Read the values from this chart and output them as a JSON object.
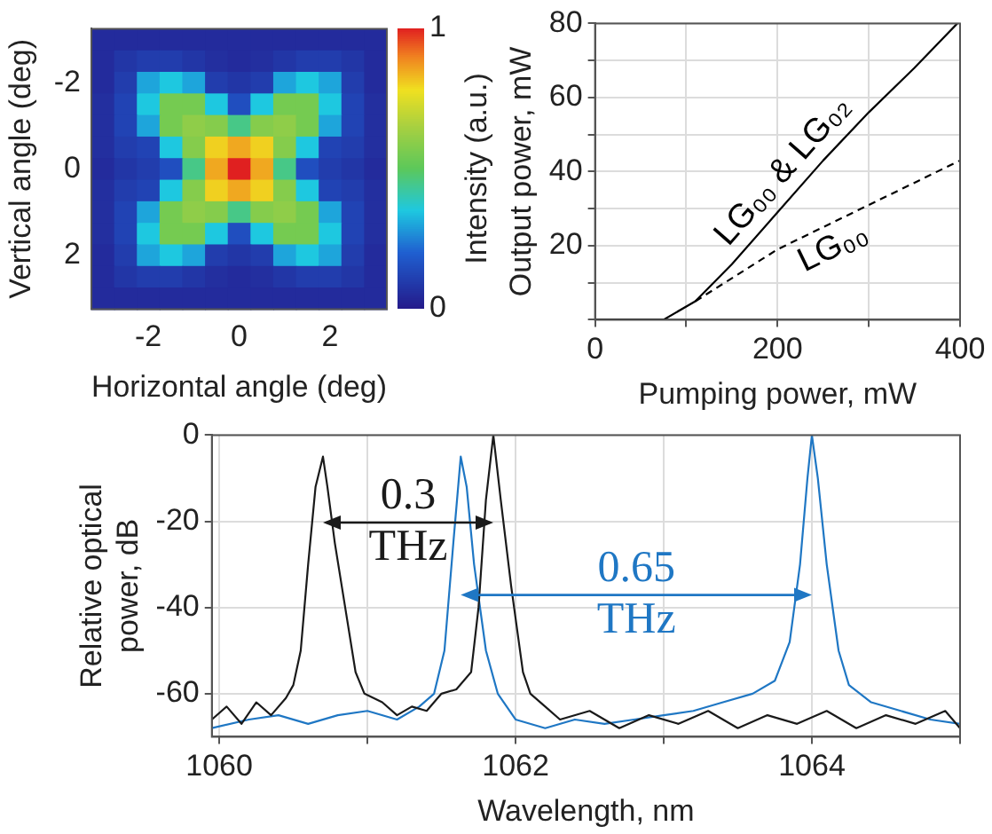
{
  "chart_data": [
    {
      "type": "heatmap",
      "xlabel": "Horizontal angle (deg)",
      "ylabel": "Vertical angle (deg)",
      "clabel": "Intensity (a.u.)",
      "categories": [
        null,
        null,
        "-2",
        null,
        null,
        null,
        "0",
        null,
        null,
        null,
        "2",
        null,
        null
      ],
      "y_categories": [
        null,
        null,
        "-2",
        null,
        null,
        null,
        "0",
        null,
        null,
        null,
        "2",
        null,
        null
      ],
      "clim": [
        0,
        1
      ],
      "cticks": [
        0,
        1
      ],
      "cells": [
        [
          0.05,
          0.05,
          0.05,
          0.05,
          0.05,
          0.05,
          0.05,
          0.05,
          0.05,
          0.05,
          0.05,
          0.05,
          0.05
        ],
        [
          0.05,
          0.08,
          0.1,
          0.1,
          0.08,
          0.06,
          0.05,
          0.06,
          0.08,
          0.1,
          0.1,
          0.08,
          0.05
        ],
        [
          0.05,
          0.1,
          0.3,
          0.35,
          0.3,
          0.1,
          0.08,
          0.1,
          0.3,
          0.35,
          0.3,
          0.1,
          0.05
        ],
        [
          0.06,
          0.12,
          0.35,
          0.55,
          0.55,
          0.35,
          0.15,
          0.35,
          0.55,
          0.55,
          0.35,
          0.12,
          0.06
        ],
        [
          0.06,
          0.12,
          0.3,
          0.55,
          0.6,
          0.58,
          0.45,
          0.58,
          0.6,
          0.55,
          0.3,
          0.12,
          0.06
        ],
        [
          0.06,
          0.1,
          0.12,
          0.35,
          0.58,
          0.8,
          0.85,
          0.8,
          0.58,
          0.35,
          0.12,
          0.1,
          0.06
        ],
        [
          0.05,
          0.08,
          0.1,
          0.15,
          0.45,
          0.85,
          1,
          0.85,
          0.45,
          0.15,
          0.1,
          0.08,
          0.05
        ],
        [
          0.06,
          0.1,
          0.12,
          0.35,
          0.58,
          0.8,
          0.85,
          0.8,
          0.58,
          0.35,
          0.12,
          0.1,
          0.06
        ],
        [
          0.06,
          0.12,
          0.3,
          0.55,
          0.6,
          0.58,
          0.45,
          0.58,
          0.6,
          0.55,
          0.3,
          0.12,
          0.06
        ],
        [
          0.06,
          0.12,
          0.35,
          0.55,
          0.55,
          0.35,
          0.15,
          0.35,
          0.55,
          0.55,
          0.35,
          0.12,
          0.06
        ],
        [
          0.05,
          0.1,
          0.3,
          0.35,
          0.3,
          0.1,
          0.08,
          0.1,
          0.3,
          0.35,
          0.3,
          0.1,
          0.05
        ],
        [
          0.05,
          0.08,
          0.1,
          0.1,
          0.08,
          0.06,
          0.05,
          0.06,
          0.08,
          0.1,
          0.1,
          0.08,
          0.05
        ],
        [
          0.05,
          0.05,
          0.05,
          0.05,
          0.05,
          0.05,
          0.05,
          0.05,
          0.05,
          0.05,
          0.05,
          0.05,
          0.05
        ]
      ]
    },
    {
      "type": "line",
      "xlabel": "Pumping power, mW",
      "ylabel": "Output power, mW",
      "xlim": [
        0,
        400
      ],
      "ylim": [
        0,
        80
      ],
      "xticks": [
        0,
        {
          "value": 100,
          "label": null
        },
        200,
        {
          "value": 300,
          "label": null
        },
        400
      ],
      "yticks": [
        {
          "value": 0,
          "label": null
        },
        {
          "value": 10,
          "label": null
        },
        20,
        {
          "value": 30,
          "label": null
        },
        40,
        {
          "value": 50,
          "label": null
        },
        60,
        {
          "value": 70,
          "label": null
        },
        80
      ],
      "grid": true,
      "marker": "none",
      "series": [
        {
          "name": "LG₀₀ & LG₀₂",
          "color": "#000000",
          "line_style": "solid",
          "x": [
            0,
            75,
            110,
            150,
            200,
            250,
            300,
            350,
            397
          ],
          "values": [
            0,
            0,
            5,
            15,
            29,
            43,
            56,
            68,
            80
          ]
        },
        {
          "name": "LG₀₀",
          "color": "#000000",
          "line_style": "dashed",
          "x": [
            110,
            200,
            300,
            400
          ],
          "values": [
            5,
            19,
            31,
            43
          ]
        }
      ]
    },
    {
      "type": "line",
      "xlabel": "Wavelength, nm",
      "ylabel": "Relative optical power, dB",
      "xlim": [
        1059.95,
        1065
      ],
      "ylim": [
        -70,
        0
      ],
      "xticks": [
        1060,
        {
          "value": 1061,
          "label": null
        },
        1062,
        {
          "value": 1063,
          "label": null
        },
        1064,
        {
          "value": 1065,
          "label": null
        }
      ],
      "yticks": [
        -60,
        -40,
        -20,
        0
      ],
      "grid": true,
      "marker": "none",
      "annotations": [
        "0.3 THz",
        "0.65 THz"
      ],
      "series": [
        {
          "color": "#1a1a1a",
          "x": [
            1059.95,
            1060.05,
            1060.15,
            1060.25,
            1060.35,
            1060.45,
            1060.5,
            1060.55,
            1060.6,
            1060.65,
            1060.7,
            1060.73,
            1060.78,
            1060.85,
            1060.92,
            1060.98,
            1061.1,
            1061.2,
            1061.3,
            1061.4,
            1061.5,
            1061.6,
            1061.7,
            1061.75,
            1061.8,
            1061.85,
            1061.9,
            1061.97,
            1062.05,
            1062.1,
            1062.2,
            1062.3,
            1062.5,
            1062.7,
            1062.9,
            1063.1,
            1063.3,
            1063.5,
            1063.7,
            1063.9,
            1064.1,
            1064.3,
            1064.5,
            1064.7,
            1064.9,
            1065
          ],
          "values": [
            -66,
            -63,
            -67,
            -62,
            -65,
            -61,
            -58,
            -50,
            -30,
            -12,
            -5,
            -12,
            -25,
            -40,
            -55,
            -60,
            -62,
            -65,
            -63,
            -64,
            -60,
            -59,
            -55,
            -40,
            -15,
            0,
            -15,
            -35,
            -55,
            -60,
            -63,
            -66,
            -64,
            -68,
            -65,
            -67,
            -64,
            -68,
            -65,
            -67,
            -64,
            -68,
            -65,
            -67,
            -64,
            -68
          ]
        },
        {
          "color": "#1f77c4",
          "x": [
            1059.95,
            1060.2,
            1060.4,
            1060.6,
            1060.8,
            1061,
            1061.2,
            1061.35,
            1061.45,
            1061.52,
            1061.58,
            1061.63,
            1061.67,
            1061.72,
            1061.8,
            1061.88,
            1062,
            1062.2,
            1062.4,
            1062.6,
            1062.8,
            1063,
            1063.2,
            1063.4,
            1063.6,
            1063.75,
            1063.85,
            1063.92,
            1063.97,
            1064,
            1064.04,
            1064.1,
            1064.18,
            1064.25,
            1064.4,
            1064.6,
            1064.8,
            1065
          ],
          "values": [
            -68,
            -66,
            -65,
            -67,
            -65,
            -64,
            -66,
            -63,
            -60,
            -50,
            -25,
            -5,
            -12,
            -30,
            -50,
            -60,
            -66,
            -68,
            -66,
            -67,
            -66,
            -65,
            -64,
            -62,
            -60,
            -57,
            -48,
            -30,
            -10,
            0,
            -10,
            -30,
            -50,
            -58,
            -62,
            -64,
            -66,
            -67
          ]
        }
      ]
    }
  ]
}
